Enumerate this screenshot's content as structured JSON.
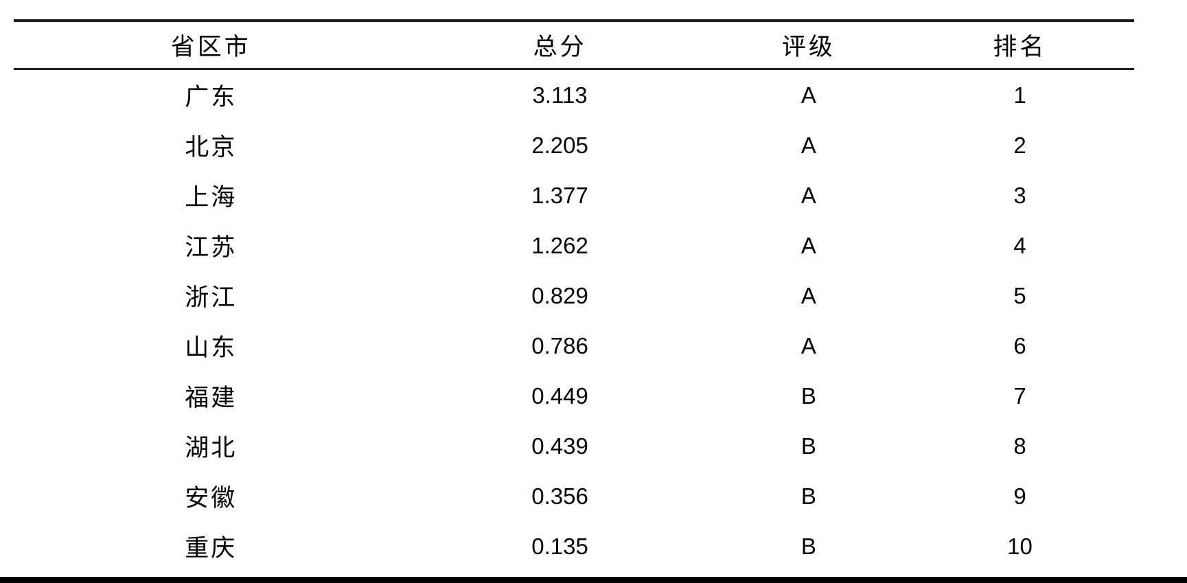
{
  "page": {
    "background_color": "#ffffff",
    "rule_color": "#1f1f1f",
    "bottom_rule_color": "#000000",
    "text_color": "#000000"
  },
  "table": {
    "columns": [
      {
        "key": "region",
        "label": "省区市"
      },
      {
        "key": "score",
        "label": "总分"
      },
      {
        "key": "grade",
        "label": "评级"
      },
      {
        "key": "rank",
        "label": "排名"
      }
    ],
    "rows": [
      {
        "region": "广东",
        "score": "3.113",
        "grade": "A",
        "rank": "1"
      },
      {
        "region": "北京",
        "score": "2.205",
        "grade": "A",
        "rank": "2"
      },
      {
        "region": "上海",
        "score": "1.377",
        "grade": "A",
        "rank": "3"
      },
      {
        "region": "江苏",
        "score": "1.262",
        "grade": "A",
        "rank": "4"
      },
      {
        "region": "浙江",
        "score": "0.829",
        "grade": "A",
        "rank": "5"
      },
      {
        "region": "山东",
        "score": "0.786",
        "grade": "A",
        "rank": "6"
      },
      {
        "region": "福建",
        "score": "0.449",
        "grade": "B",
        "rank": "7"
      },
      {
        "region": "湖北",
        "score": "0.439",
        "grade": "B",
        "rank": "8"
      },
      {
        "region": "安徽",
        "score": "0.356",
        "grade": "B",
        "rank": "9"
      },
      {
        "region": "重庆",
        "score": "0.135",
        "grade": "B",
        "rank": "10"
      }
    ]
  }
}
